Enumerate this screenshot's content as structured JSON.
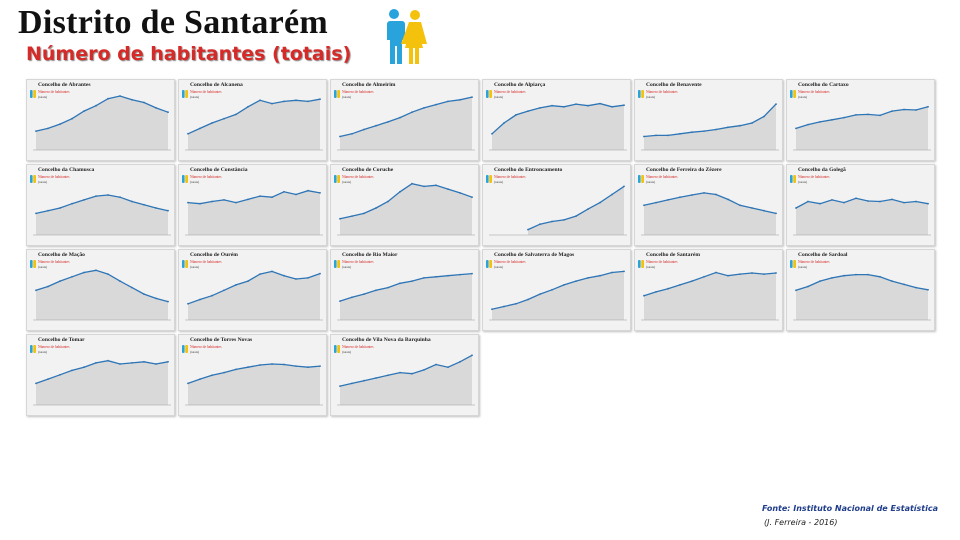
{
  "header": {
    "title": "Distrito de Santarém",
    "subtitle": "Número de habitantes (totais)"
  },
  "icons": {
    "header_icon": "man-woman-icon",
    "card_icon": "man-woman-icon"
  },
  "colors": {
    "subtitle_red": "#d62a28",
    "line_blue": "#2e75b6",
    "area_gray": "#d9d9d9",
    "card_bg": "#f2f2f2",
    "man_blue": "#29a3dc",
    "woman_yellow": "#f4c20d",
    "source_blue": "#1f3d8a"
  },
  "card_common": {
    "legend_label": "Número de habitantes",
    "legend_unit": "(totais)"
  },
  "cards": [
    {
      "title": "Concelho de Abrantes",
      "chart_data": {
        "type": "area",
        "values": [
          0.35,
          0.4,
          0.48,
          0.58,
          0.72,
          0.82,
          0.95,
          1.0,
          0.93,
          0.88,
          0.78,
          0.7
        ]
      }
    },
    {
      "title": "Concelho de Alcanena",
      "chart_data": {
        "type": "area",
        "values": [
          0.3,
          0.4,
          0.5,
          0.58,
          0.66,
          0.8,
          0.92,
          0.86,
          0.9,
          0.92,
          0.9,
          0.94
        ]
      }
    },
    {
      "title": "Concelho de Almeirim",
      "chart_data": {
        "type": "area",
        "values": [
          0.25,
          0.3,
          0.38,
          0.45,
          0.52,
          0.6,
          0.7,
          0.78,
          0.84,
          0.9,
          0.93,
          0.98
        ]
      }
    },
    {
      "title": "Concelho de Alpiarça",
      "chart_data": {
        "type": "area",
        "values": [
          0.3,
          0.5,
          0.65,
          0.72,
          0.78,
          0.82,
          0.8,
          0.85,
          0.82,
          0.86,
          0.8,
          0.83
        ]
      }
    },
    {
      "title": "Concelho de Benavente",
      "chart_data": {
        "type": "area",
        "values": [
          0.25,
          0.27,
          0.27,
          0.3,
          0.33,
          0.35,
          0.38,
          0.42,
          0.45,
          0.5,
          0.62,
          0.85
        ]
      }
    },
    {
      "title": "Concelho do Cartaxo",
      "chart_data": {
        "type": "area",
        "values": [
          0.4,
          0.47,
          0.52,
          0.56,
          0.6,
          0.65,
          0.66,
          0.64,
          0.72,
          0.75,
          0.74,
          0.8
        ]
      }
    },
    {
      "title": "Concelho da Chamusca",
      "chart_data": {
        "type": "area",
        "values": [
          0.4,
          0.45,
          0.5,
          0.58,
          0.65,
          0.72,
          0.74,
          0.7,
          0.62,
          0.56,
          0.5,
          0.45
        ]
      }
    },
    {
      "title": "Concelho de Constância",
      "chart_data": {
        "type": "area",
        "values": [
          0.6,
          0.58,
          0.62,
          0.65,
          0.6,
          0.66,
          0.72,
          0.7,
          0.8,
          0.75,
          0.82,
          0.78
        ]
      }
    },
    {
      "title": "Concelho de Coruche",
      "chart_data": {
        "type": "area",
        "values": [
          0.3,
          0.35,
          0.4,
          0.5,
          0.62,
          0.8,
          0.95,
          0.9,
          0.92,
          0.85,
          0.78,
          0.7
        ]
      }
    },
    {
      "title": "Concelho do Entroncamento",
      "chart_data": {
        "type": "area",
        "values": [
          null,
          null,
          null,
          0.1,
          0.2,
          0.25,
          0.28,
          0.35,
          0.48,
          0.6,
          0.75,
          0.9
        ]
      }
    },
    {
      "title": "Concelho de Ferreira do Zêzere",
      "chart_data": {
        "type": "area",
        "values": [
          0.55,
          0.6,
          0.65,
          0.7,
          0.74,
          0.78,
          0.75,
          0.66,
          0.55,
          0.5,
          0.45,
          0.4
        ]
      }
    },
    {
      "title": "Concelho da Golegã",
      "chart_data": {
        "type": "area",
        "values": [
          0.5,
          0.62,
          0.58,
          0.65,
          0.6,
          0.68,
          0.63,
          0.62,
          0.66,
          0.6,
          0.62,
          0.58
        ]
      }
    },
    {
      "title": "Concelho de Mação",
      "chart_data": {
        "type": "area",
        "values": [
          0.55,
          0.62,
          0.72,
          0.8,
          0.88,
          0.92,
          0.85,
          0.72,
          0.6,
          0.48,
          0.4,
          0.34
        ]
      }
    },
    {
      "title": "Concelho de Ourém",
      "chart_data": {
        "type": "area",
        "values": [
          0.3,
          0.38,
          0.45,
          0.55,
          0.65,
          0.72,
          0.85,
          0.9,
          0.82,
          0.76,
          0.78,
          0.86
        ]
      }
    },
    {
      "title": "Concelho de Rio Maior",
      "chart_data": {
        "type": "area",
        "values": [
          0.35,
          0.42,
          0.48,
          0.55,
          0.6,
          0.68,
          0.72,
          0.78,
          0.8,
          0.82,
          0.84,
          0.86
        ]
      }
    },
    {
      "title": "Concelho de Salvaterra de Magos",
      "chart_data": {
        "type": "area",
        "values": [
          0.2,
          0.25,
          0.3,
          0.38,
          0.48,
          0.56,
          0.65,
          0.72,
          0.78,
          0.82,
          0.88,
          0.9
        ]
      }
    },
    {
      "title": "Concelho de Santarém",
      "chart_data": {
        "type": "area",
        "values": [
          0.45,
          0.52,
          0.58,
          0.65,
          0.72,
          0.8,
          0.88,
          0.82,
          0.85,
          0.87,
          0.85,
          0.87
        ]
      }
    },
    {
      "title": "Concelho de Sardoal",
      "chart_data": {
        "type": "area",
        "values": [
          0.55,
          0.62,
          0.72,
          0.78,
          0.82,
          0.84,
          0.84,
          0.8,
          0.72,
          0.66,
          0.6,
          0.56
        ]
      }
    },
    {
      "title": "Concelho de Tomar",
      "chart_data": {
        "type": "area",
        "values": [
          0.4,
          0.48,
          0.56,
          0.64,
          0.7,
          0.78,
          0.82,
          0.76,
          0.78,
          0.8,
          0.76,
          0.8
        ]
      }
    },
    {
      "title": "Concelho de Torres Novas",
      "chart_data": {
        "type": "area",
        "values": [
          0.4,
          0.48,
          0.55,
          0.6,
          0.66,
          0.7,
          0.74,
          0.76,
          0.75,
          0.72,
          0.7,
          0.72
        ]
      }
    },
    {
      "title": "Concelho de Vila Nova da Barquinha",
      "chart_data": {
        "type": "area",
        "values": [
          0.35,
          0.4,
          0.45,
          0.5,
          0.55,
          0.6,
          0.58,
          0.65,
          0.75,
          0.7,
          0.8,
          0.92
        ]
      }
    }
  ],
  "footer": {
    "source": "Fonte: Instituto Nacional de Estatística",
    "credit": "(J. Ferreira - 2016)"
  }
}
